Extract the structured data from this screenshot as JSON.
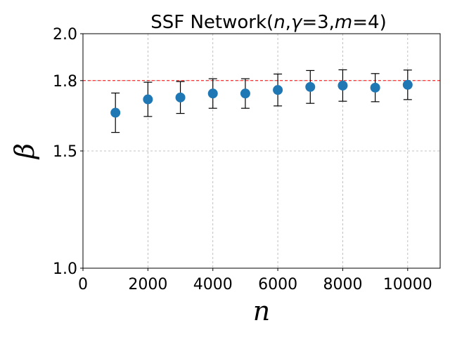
{
  "chart_data": {
    "type": "scatter",
    "title_parts": [
      {
        "text": "SSF Network(",
        "italic": false
      },
      {
        "text": "n",
        "italic": true
      },
      {
        "text": ",",
        "italic": false
      },
      {
        "text": "γ",
        "italic": true
      },
      {
        "text": "=3,",
        "italic": false
      },
      {
        "text": "m",
        "italic": true
      },
      {
        "text": "=4)",
        "italic": false
      }
    ],
    "xlabel": "n",
    "ylabel": "β",
    "xlim": [
      0,
      11000
    ],
    "ylim": [
      1.0,
      2.0
    ],
    "xticks": [
      0,
      2000,
      4000,
      6000,
      8000,
      10000
    ],
    "xtick_labels": [
      "0",
      "2000",
      "4000",
      "6000",
      "8000",
      "10000"
    ],
    "yticks": [
      1.0,
      1.5,
      1.8,
      2.0
    ],
    "ytick_labels": [
      "1.0",
      "1.5",
      "1.8",
      "2.0"
    ],
    "grid": true,
    "reference_line": {
      "y": 1.8,
      "color": "#ff0000",
      "style": "dashed"
    },
    "marker_color": "#1f77b4",
    "errorbar_color": "#000000",
    "points": [
      {
        "x": 1000,
        "y": 1.663,
        "err": 0.084
      },
      {
        "x": 2000,
        "y": 1.72,
        "err": 0.073
      },
      {
        "x": 3000,
        "y": 1.728,
        "err": 0.068
      },
      {
        "x": 4000,
        "y": 1.745,
        "err": 0.063
      },
      {
        "x": 5000,
        "y": 1.745,
        "err": 0.063
      },
      {
        "x": 6000,
        "y": 1.76,
        "err": 0.068
      },
      {
        "x": 7000,
        "y": 1.773,
        "err": 0.07
      },
      {
        "x": 8000,
        "y": 1.779,
        "err": 0.067
      },
      {
        "x": 9000,
        "y": 1.77,
        "err": 0.06
      },
      {
        "x": 10000,
        "y": 1.782,
        "err": 0.063
      }
    ]
  }
}
